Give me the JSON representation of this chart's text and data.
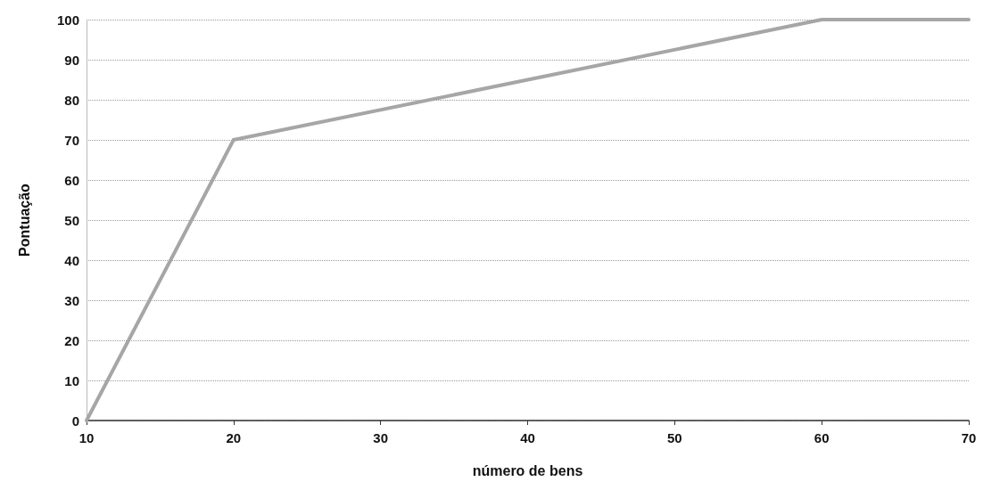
{
  "chart_data": {
    "type": "line",
    "xlabel": "número de bens",
    "ylabel": "Pontuação",
    "x": [
      10,
      20,
      60,
      70
    ],
    "series": [
      {
        "color": "#a6a6a6",
        "values": [
          0,
          70,
          100,
          100
        ]
      }
    ],
    "xlim": [
      10,
      70
    ],
    "xticks": [
      10,
      20,
      30,
      40,
      50,
      60,
      70
    ],
    "ylim": [
      0,
      100
    ],
    "yticks": [
      0,
      10,
      20,
      30,
      40,
      50,
      60,
      70,
      80,
      90,
      100
    ],
    "grid": "y",
    "marker": "none",
    "line_style": "solid"
  }
}
